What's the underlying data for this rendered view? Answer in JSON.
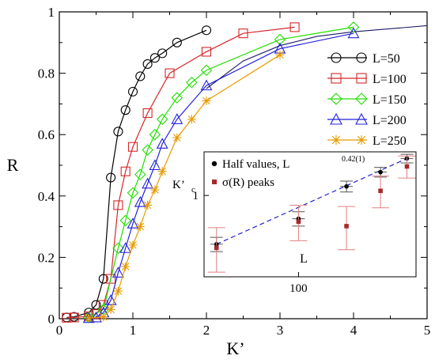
{
  "chart_data": {
    "type": "line",
    "xlabel": "K’",
    "ylabel": "R",
    "xlim": [
      0,
      5
    ],
    "ylim": [
      0,
      1
    ],
    "xticks": [
      "0",
      "1",
      "2",
      "3",
      "4",
      "5"
    ],
    "yticks": [
      "0",
      "0.2",
      "0.4",
      "0.6",
      "0.8",
      "1"
    ],
    "grid": false,
    "legend_position": "top-right",
    "series": [
      {
        "name": "L=50",
        "color": "#000000",
        "marker": "circle",
        "x": [
          0.1,
          0.2,
          0.4,
          0.5,
          0.6,
          0.7,
          0.8,
          0.9,
          1.0,
          1.1,
          1.2,
          1.3,
          1.4,
          1.6,
          2.0
        ],
        "y": [
          0.004,
          0.006,
          0.02,
          0.045,
          0.13,
          0.46,
          0.61,
          0.68,
          0.74,
          0.79,
          0.83,
          0.85,
          0.865,
          0.9,
          0.94
        ]
      },
      {
        "name": "L=100",
        "color": "#d62728",
        "marker": "square",
        "x": [
          0.1,
          0.2,
          0.4,
          0.5,
          0.6,
          0.7,
          0.8,
          0.9,
          1.0,
          1.2,
          1.5,
          2.0,
          2.5,
          3.2
        ],
        "y": [
          0.003,
          0.004,
          0.008,
          0.015,
          0.045,
          0.13,
          0.37,
          0.48,
          0.56,
          0.67,
          0.8,
          0.87,
          0.93,
          0.95
        ]
      },
      {
        "name": "L=150",
        "color": "#22dd00",
        "marker": "diamond",
        "x": [
          0.4,
          0.6,
          0.8,
          0.9,
          1.0,
          1.1,
          1.2,
          1.3,
          1.4,
          1.6,
          1.8,
          2.0,
          3.0,
          4.0
        ],
        "y": [
          0.004,
          0.03,
          0.23,
          0.32,
          0.41,
          0.47,
          0.55,
          0.6,
          0.65,
          0.72,
          0.77,
          0.81,
          0.91,
          0.95
        ]
      },
      {
        "name": "L=200",
        "color": "#2222dd",
        "marker": "triangle",
        "x": [
          0.4,
          0.5,
          0.6,
          0.7,
          0.8,
          0.9,
          1.0,
          1.1,
          1.2,
          1.3,
          1.4,
          1.6,
          2.0,
          3.0,
          4.0
        ],
        "y": [
          0.002,
          0.004,
          0.02,
          0.06,
          0.15,
          0.23,
          0.31,
          0.38,
          0.44,
          0.5,
          0.57,
          0.65,
          0.76,
          0.88,
          0.93
        ]
      },
      {
        "name": "L=250",
        "color": "#e69a00",
        "marker": "star",
        "x": [
          0.4,
          0.6,
          0.7,
          0.8,
          0.9,
          1.0,
          1.1,
          1.2,
          1.3,
          1.4,
          1.6,
          1.8,
          2.0,
          3.0
        ],
        "y": [
          0.002,
          0.006,
          0.03,
          0.09,
          0.17,
          0.24,
          0.3,
          0.37,
          0.42,
          0.48,
          0.59,
          0.65,
          0.71,
          0.86
        ]
      }
    ],
    "extra_curve": {
      "x": [
        2.0,
        2.5,
        3.0,
        3.5,
        4.0,
        4.5,
        5.0
      ],
      "y": [
        0.75,
        0.84,
        0.89,
        0.92,
        0.935,
        0.945,
        0.955
      ]
    },
    "inset": {
      "ylabel": "K’",
      "ylabel_sub": "c",
      "xlabel": "L",
      "xtick_label": "100",
      "ytick_label": "1",
      "fit_color": "#2222cc",
      "series": [
        {
          "name": "Half values, L",
          "name_sup": "0.42(1)",
          "color": "#000000",
          "marker": "circle",
          "x": [
            50,
            100,
            150,
            200,
            250
          ],
          "y": [
            0.66,
            0.82,
            1.08,
            1.22,
            1.37
          ],
          "err": [
            0.04,
            0.05,
            0.05,
            0.05,
            0.05
          ]
        },
        {
          "name": "σ(R) peaks",
          "color": "#a52a2a",
          "marker": "square",
          "x": [
            50,
            100,
            150,
            200,
            250
          ],
          "y": [
            0.64,
            0.8,
            0.77,
            1.04,
            1.28
          ],
          "err": [
            0.12,
            0.12,
            0.14,
            0.14,
            0.12
          ]
        }
      ]
    }
  }
}
